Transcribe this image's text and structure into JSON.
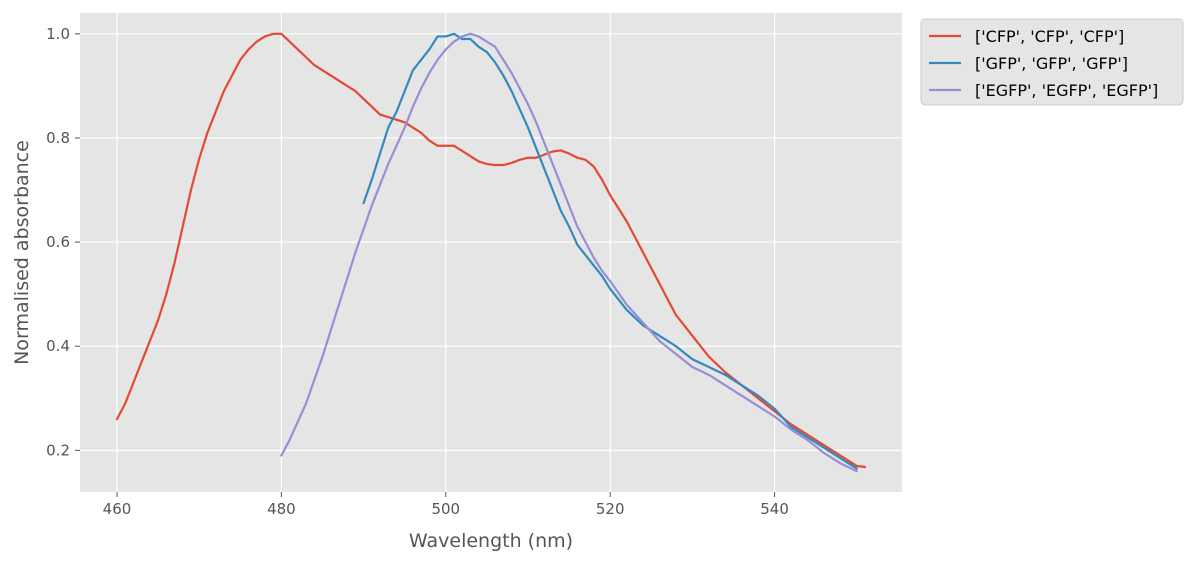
{
  "chart_data": {
    "type": "line",
    "xlabel": "Wavelength (nm)",
    "ylabel": "Normalised absorbance",
    "xlim": [
      455.5,
      555.5
    ],
    "ylim": [
      0.12,
      1.04
    ],
    "x_ticks": [
      460,
      480,
      500,
      520,
      540
    ],
    "y_ticks": [
      0.2,
      0.4,
      0.6,
      0.8,
      1.0
    ],
    "x_tick_labels": [
      "460",
      "480",
      "500",
      "520",
      "540"
    ],
    "y_tick_labels": [
      "0.2",
      "0.4",
      "0.6",
      "0.8",
      "1.0"
    ],
    "grid": true,
    "legend_position": "outside-top-right",
    "background": "#e5e5e5",
    "series": [
      {
        "name": "['CFP', 'CFP', 'CFP']",
        "color": "#e24a33",
        "x": [
          460,
          461,
          462,
          463,
          464,
          465,
          466,
          467,
          468,
          469,
          470,
          471,
          472,
          473,
          474,
          475,
          476,
          477,
          478,
          479,
          480,
          481,
          482,
          483,
          484,
          485,
          486,
          487,
          488,
          489,
          490,
          491,
          492,
          493,
          494,
          495,
          496,
          497,
          498,
          499,
          500,
          501,
          502,
          503,
          504,
          505,
          506,
          507,
          508,
          509,
          510,
          511,
          512,
          513,
          514,
          515,
          516,
          517,
          518,
          519,
          520,
          522,
          524,
          526,
          528,
          530,
          532,
          534,
          536,
          538,
          540,
          542,
          544,
          546,
          548,
          550,
          551
        ],
        "y": [
          0.26,
          0.29,
          0.33,
          0.37,
          0.41,
          0.45,
          0.5,
          0.56,
          0.63,
          0.7,
          0.76,
          0.81,
          0.85,
          0.89,
          0.92,
          0.95,
          0.97,
          0.985,
          0.995,
          1.0,
          1.0,
          0.985,
          0.97,
          0.955,
          0.94,
          0.93,
          0.92,
          0.91,
          0.9,
          0.89,
          0.875,
          0.86,
          0.845,
          0.84,
          0.835,
          0.83,
          0.82,
          0.81,
          0.795,
          0.785,
          0.785,
          0.785,
          0.775,
          0.765,
          0.755,
          0.75,
          0.748,
          0.748,
          0.752,
          0.758,
          0.762,
          0.762,
          0.768,
          0.774,
          0.776,
          0.77,
          0.762,
          0.758,
          0.745,
          0.72,
          0.69,
          0.64,
          0.58,
          0.52,
          0.46,
          0.42,
          0.38,
          0.35,
          0.325,
          0.3,
          0.275,
          0.25,
          0.23,
          0.21,
          0.19,
          0.17,
          0.168
        ]
      },
      {
        "name": "['GFP', 'GFP', 'GFP']",
        "color": "#348abd",
        "x": [
          490,
          491,
          492,
          493,
          494,
          495,
          496,
          497,
          498,
          499,
          500,
          501,
          502,
          503,
          504,
          505,
          506,
          507,
          508,
          509,
          510,
          511,
          512,
          513,
          514,
          515,
          516,
          517,
          518,
          519,
          520,
          522,
          524,
          526,
          528,
          530,
          532,
          534,
          536,
          538,
          540,
          542,
          544,
          546,
          548,
          550
        ],
        "y": [
          0.675,
          0.72,
          0.77,
          0.82,
          0.85,
          0.89,
          0.93,
          0.95,
          0.97,
          0.995,
          0.995,
          1.0,
          0.99,
          0.99,
          0.975,
          0.965,
          0.945,
          0.92,
          0.89,
          0.855,
          0.82,
          0.78,
          0.74,
          0.7,
          0.66,
          0.63,
          0.595,
          0.575,
          0.555,
          0.535,
          0.51,
          0.47,
          0.44,
          0.42,
          0.4,
          0.375,
          0.36,
          0.345,
          0.325,
          0.305,
          0.28,
          0.245,
          0.225,
          0.205,
          0.185,
          0.165
        ]
      },
      {
        "name": "['EGFP', 'EGFP', 'EGFP']",
        "color": "#988ed5",
        "x": [
          480,
          481,
          482,
          483,
          484,
          485,
          486,
          487,
          488,
          489,
          490,
          491,
          492,
          493,
          494,
          495,
          496,
          497,
          498,
          499,
          500,
          501,
          502,
          503,
          504,
          505,
          506,
          507,
          508,
          509,
          510,
          511,
          512,
          513,
          514,
          515,
          516,
          517,
          518,
          519,
          520,
          522,
          524,
          526,
          528,
          530,
          532,
          534,
          536,
          538,
          540,
          542,
          544,
          546,
          548,
          550
        ],
        "y": [
          0.19,
          0.22,
          0.255,
          0.29,
          0.335,
          0.38,
          0.43,
          0.48,
          0.53,
          0.58,
          0.625,
          0.67,
          0.71,
          0.75,
          0.785,
          0.82,
          0.86,
          0.895,
          0.925,
          0.95,
          0.97,
          0.985,
          0.995,
          1.0,
          0.995,
          0.985,
          0.975,
          0.95,
          0.925,
          0.895,
          0.865,
          0.83,
          0.79,
          0.75,
          0.71,
          0.67,
          0.63,
          0.6,
          0.57,
          0.545,
          0.525,
          0.48,
          0.445,
          0.41,
          0.385,
          0.36,
          0.345,
          0.325,
          0.305,
          0.285,
          0.265,
          0.24,
          0.22,
          0.195,
          0.175,
          0.16
        ]
      }
    ]
  }
}
